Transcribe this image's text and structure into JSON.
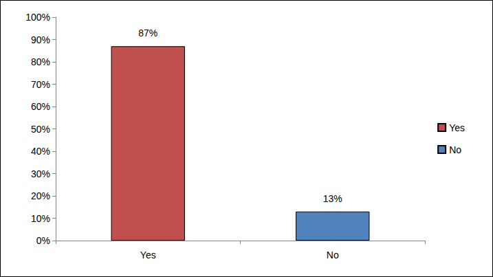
{
  "chart_data": {
    "type": "bar",
    "categories": [
      "Yes",
      "No"
    ],
    "values": [
      87,
      13
    ],
    "value_labels": [
      "87%",
      "13%"
    ],
    "colors": [
      "#c0504d",
      "#4f81bd"
    ],
    "data_labels": true,
    "legend": "right",
    "grid": false,
    "ylim": [
      0,
      100
    ],
    "yticks": [
      {
        "value": 0,
        "label": "0%"
      },
      {
        "value": 10,
        "label": "10%"
      },
      {
        "value": 20,
        "label": "20%"
      },
      {
        "value": 30,
        "label": "30%"
      },
      {
        "value": 40,
        "label": "40%"
      },
      {
        "value": 50,
        "label": "50%"
      },
      {
        "value": 60,
        "label": "60%"
      },
      {
        "value": 70,
        "label": "70%"
      },
      {
        "value": 80,
        "label": "80%"
      },
      {
        "value": 90,
        "label": "90%"
      },
      {
        "value": 100,
        "label": "100%"
      }
    ]
  }
}
